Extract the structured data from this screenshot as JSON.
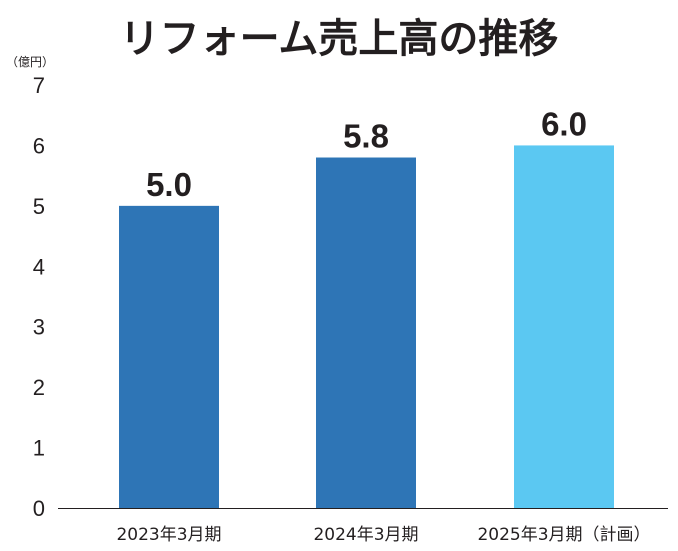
{
  "chart_data": {
    "type": "bar",
    "title": "リフォーム売上高の推移",
    "unit_label": "（億円）",
    "categories": [
      "2023年3月期",
      "2024年3月期",
      "2025年3月期（計画）"
    ],
    "values": [
      5.0,
      5.8,
      6.0
    ],
    "value_labels": [
      "5.0",
      "5.8",
      "6.0"
    ],
    "bar_colors": [
      "#2e75b6",
      "#2e75b6",
      "#5bc8f2"
    ],
    "ylim": [
      0,
      7
    ],
    "yticks": [
      0,
      1,
      2,
      3,
      4,
      5,
      6,
      7
    ],
    "grid": false,
    "xlabel": "",
    "ylabel": ""
  }
}
